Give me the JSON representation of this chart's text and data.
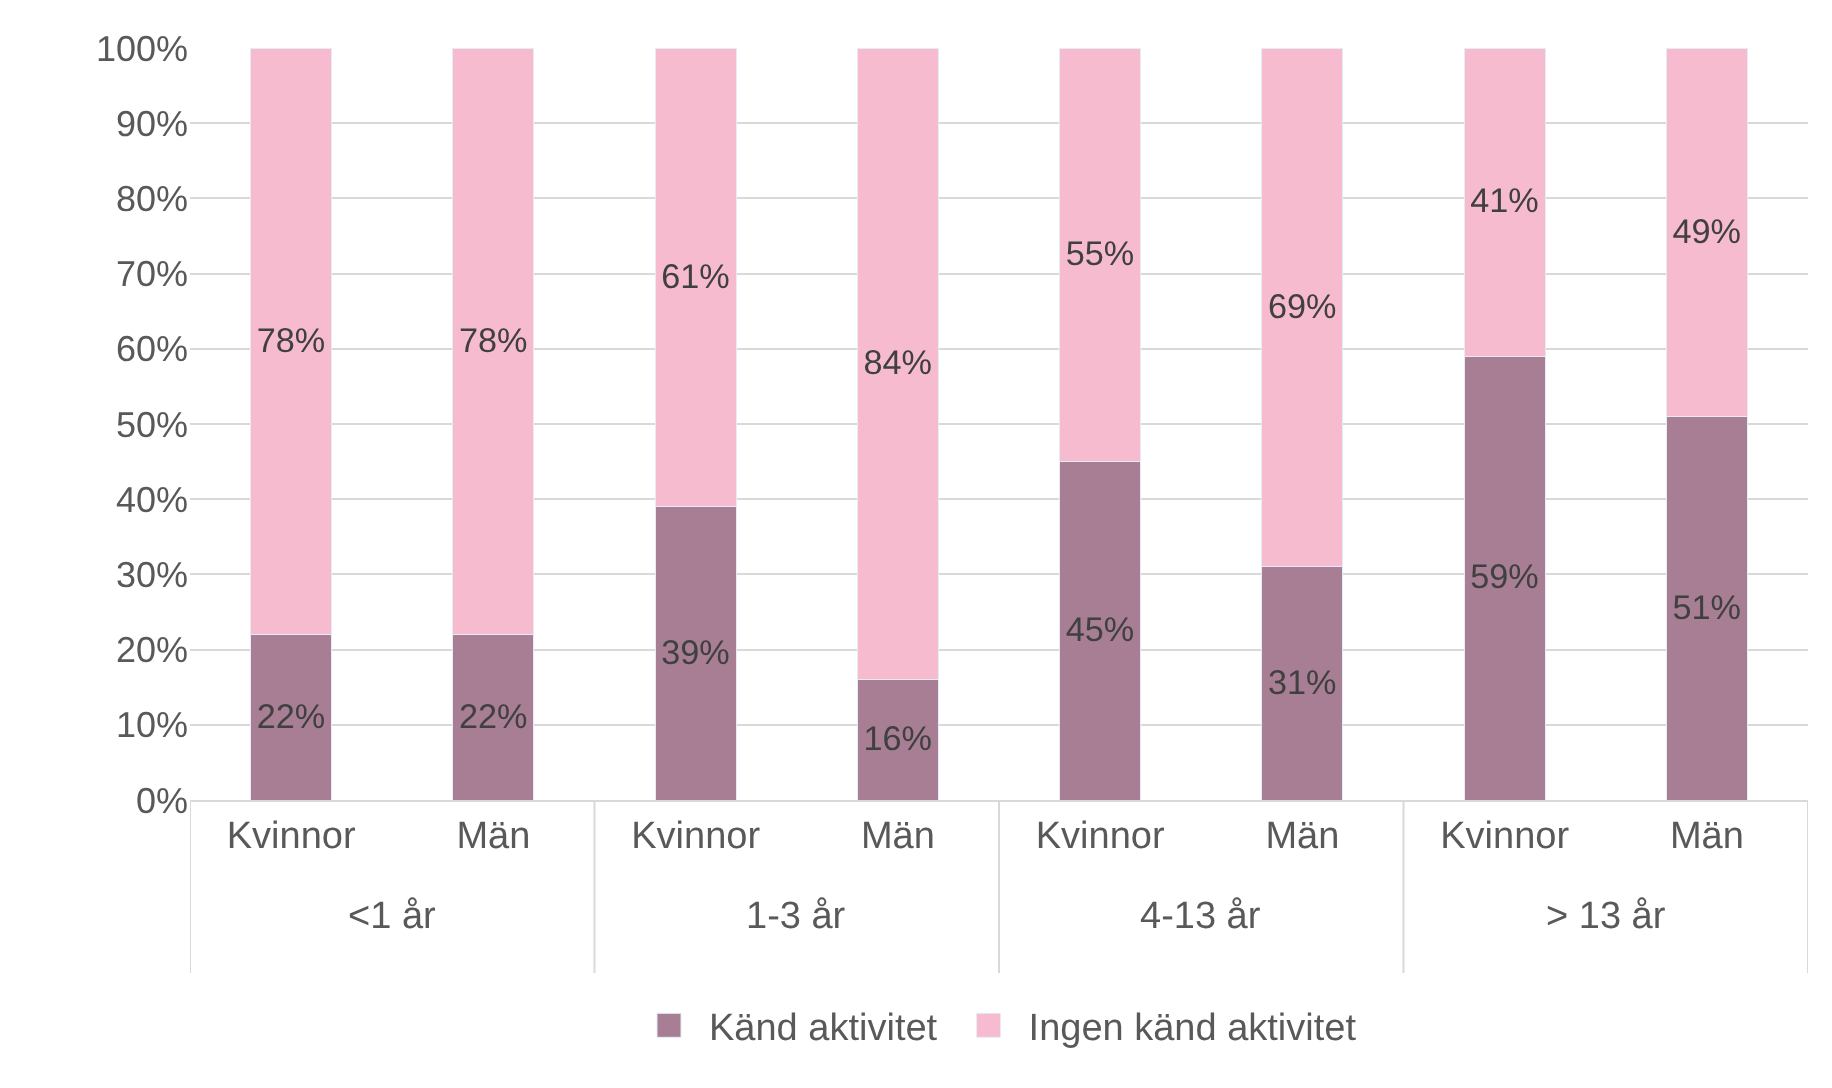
{
  "chart_data": {
    "type": "bar",
    "stacked": true,
    "categories": [
      "Kvinnor",
      "Män",
      "Kvinnor",
      "Män",
      "Kvinnor",
      "Män",
      "Kvinnor",
      "Män"
    ],
    "annotations": [
      "<1 år",
      "1-3 år",
      "4-13 år",
      "> 13 år"
    ],
    "series": [
      {
        "name": "Känd aktivitet",
        "color": "#a77e93",
        "values": [
          22,
          22,
          39,
          16,
          45,
          31,
          59,
          51
        ],
        "value_labels": [
          "22%",
          "22%",
          "39%",
          "16%",
          "45%",
          "31%",
          "59%",
          "51%"
        ]
      },
      {
        "name": "Ingen känd aktivitet",
        "color": "#f7bbcf",
        "values": [
          78,
          78,
          61,
          84,
          55,
          69,
          41,
          49
        ],
        "value_labels": [
          "78%",
          "78%",
          "61%",
          "84%",
          "55%",
          "69%",
          "41%",
          "49%"
        ]
      }
    ],
    "ylim": [
      0,
      100
    ],
    "yticks": [
      {
        "value": 0,
        "label": "0%"
      },
      {
        "value": 10,
        "label": "10%"
      },
      {
        "value": 20,
        "label": "20%"
      },
      {
        "value": 30,
        "label": "30%"
      },
      {
        "value": 40,
        "label": "40%"
      },
      {
        "value": 50,
        "label": "50%"
      },
      {
        "value": 60,
        "label": "60%"
      },
      {
        "value": 70,
        "label": "70%"
      },
      {
        "value": 80,
        "label": "80%"
      },
      {
        "value": 90,
        "label": "90%"
      },
      {
        "value": 100,
        "label": "100%"
      }
    ],
    "grid": "y",
    "legend": "bottom"
  }
}
